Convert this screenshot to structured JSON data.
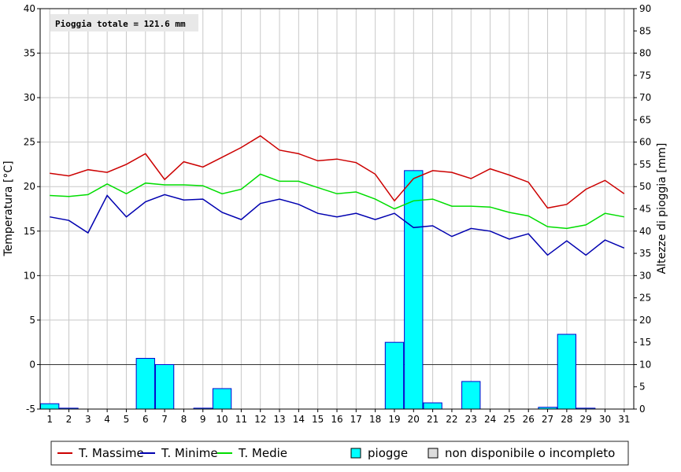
{
  "chart_data": {
    "type": "line",
    "annotation": "Pioggia totale = 121.6 mm",
    "ylabel_left": "Temperatura [°C]",
    "ylabel_right": "Altezze di pioggia [mm]",
    "x": [
      1,
      2,
      3,
      4,
      5,
      6,
      7,
      8,
      9,
      10,
      11,
      12,
      13,
      14,
      15,
      16,
      17,
      18,
      19,
      20,
      21,
      22,
      23,
      24,
      25,
      26,
      27,
      28,
      29,
      30,
      31
    ],
    "y_left_range": [
      -5,
      40
    ],
    "y_left_ticks": [
      -5,
      0,
      5,
      10,
      15,
      20,
      25,
      30,
      35,
      40
    ],
    "y_right_range": [
      0,
      90
    ],
    "y_right_ticks": [
      0,
      5,
      10,
      15,
      20,
      25,
      30,
      35,
      40,
      45,
      50,
      55,
      60,
      65,
      70,
      75,
      80,
      85,
      90
    ],
    "grid": true,
    "legend_placement": "bottom",
    "series": [
      {
        "name": "T. Massime",
        "color": "#cc0000",
        "axis": "left",
        "values": [
          21.5,
          21.2,
          21.9,
          21.6,
          22.5,
          23.7,
          20.8,
          22.8,
          22.2,
          23.3,
          24.4,
          25.7,
          24.1,
          23.7,
          22.9,
          23.1,
          22.7,
          21.4,
          18.4,
          20.9,
          21.8,
          21.6,
          20.9,
          22.0,
          21.3,
          20.5,
          17.6,
          18.0,
          19.7,
          20.7,
          19.2
        ]
      },
      {
        "name": "T. Minime",
        "color": "#0000b0",
        "axis": "left",
        "values": [
          16.6,
          16.2,
          14.8,
          19.0,
          16.6,
          18.3,
          19.1,
          18.5,
          18.6,
          17.1,
          16.3,
          18.1,
          18.6,
          18.0,
          17.0,
          16.6,
          17.0,
          16.3,
          17.0,
          15.4,
          15.6,
          14.4,
          15.3,
          15.0,
          14.1,
          14.7,
          12.3,
          13.9,
          12.3,
          14.0,
          13.1
        ]
      },
      {
        "name": "T. Medie",
        "color": "#00dd00",
        "axis": "left",
        "values": [
          19.0,
          18.9,
          19.1,
          20.3,
          19.2,
          20.4,
          20.2,
          20.2,
          20.1,
          19.2,
          19.7,
          21.4,
          20.6,
          20.6,
          19.9,
          19.2,
          19.4,
          18.6,
          17.5,
          18.4,
          18.6,
          17.8,
          17.8,
          17.7,
          17.1,
          16.7,
          15.5,
          15.3,
          15.7,
          17.0,
          16.6
        ]
      },
      {
        "name": "piogge",
        "color": "#00ffff",
        "axis": "right",
        "kind": "bar",
        "values": [
          1.2,
          0.2,
          0,
          0,
          0,
          11.4,
          10.0,
          0,
          0.2,
          4.6,
          0,
          0,
          0,
          0,
          0,
          0,
          0,
          0,
          15.0,
          53.6,
          1.4,
          0,
          6.2,
          0,
          0,
          0,
          0.4,
          16.8,
          0.2,
          0,
          0
        ]
      }
    ],
    "legend_items": [
      {
        "label": "T. Massime",
        "kind": "line",
        "color": "#cc0000"
      },
      {
        "label": "T. Minime",
        "kind": "line",
        "color": "#0000b0"
      },
      {
        "label": "T. Medie",
        "kind": "line",
        "color": "#00dd00"
      },
      {
        "label": "piogge",
        "kind": "box",
        "color": "#00ffff"
      },
      {
        "label": "non disponibile o incompleto",
        "kind": "box",
        "color": "#dcdcdc"
      }
    ]
  }
}
